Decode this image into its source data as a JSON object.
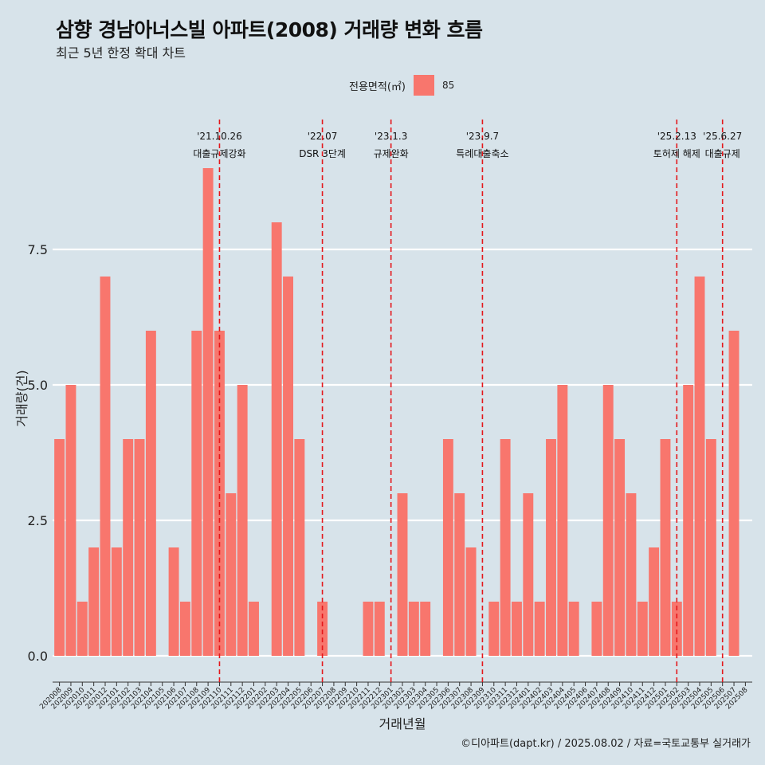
{
  "title": "삼향 경남아너스빌 아파트(2008) 거래량 변화 흐름",
  "subtitle": "최근 5년 한정 확대 차트",
  "legend": {
    "title": "전용면적(㎡)",
    "item": "85",
    "color": "#f8766d"
  },
  "caption": "©디아파트(dapt.kr) / 2025.08.02 / 자료=국토교통부 실거래가",
  "chart_data": {
    "type": "bar",
    "xlabel": "거래년월",
    "ylabel": "거래량(건)",
    "ylim": [
      -0.5,
      9.9
    ],
    "yticks": [
      "0.0",
      "2.5",
      "5.0",
      "7.5"
    ],
    "grid": true,
    "legend_position": "top",
    "categories": [
      "202008",
      "202009",
      "202010",
      "202011",
      "202012",
      "202101",
      "202102",
      "202103",
      "202104",
      "202105",
      "202106",
      "202107",
      "202108",
      "202109",
      "202110",
      "202111",
      "202112",
      "202201",
      "202202",
      "202203",
      "202204",
      "202205",
      "202206",
      "202207",
      "202208",
      "202209",
      "202210",
      "202211",
      "202212",
      "202301",
      "202302",
      "202303",
      "202304",
      "202305",
      "202306",
      "202307",
      "202308",
      "202309",
      "202310",
      "202311",
      "202312",
      "202401",
      "202402",
      "202403",
      "202404",
      "202405",
      "202406",
      "202407",
      "202408",
      "202409",
      "202410",
      "202411",
      "202412",
      "202501",
      "202502",
      "202503",
      "202504",
      "202505",
      "202506",
      "202507",
      "202508"
    ],
    "series": [
      {
        "name": "85",
        "color": "#f8766d",
        "values": [
          4,
          5,
          1,
          2,
          7,
          2,
          4,
          4,
          6,
          0,
          2,
          1,
          6,
          9,
          6,
          3,
          5,
          1,
          0,
          8,
          7,
          4,
          0,
          1,
          0,
          0,
          0,
          1,
          1,
          0,
          3,
          1,
          1,
          0,
          4,
          3,
          2,
          0,
          1,
          4,
          1,
          3,
          1,
          4,
          5,
          1,
          0,
          1,
          5,
          4,
          3,
          1,
          2,
          4,
          1,
          5,
          7,
          4,
          0,
          6,
          0
        ]
      }
    ],
    "annotations": [
      {
        "at": "202110",
        "date": "'21.10.26",
        "label": "대출규제강화"
      },
      {
        "at": "202207",
        "date": "'22.07",
        "label": "DSR 3단계"
      },
      {
        "at": "202301",
        "date": "'23.1.3",
        "label": "규제완화"
      },
      {
        "at": "202309",
        "date": "'23.9.7",
        "label": "특례대출축소"
      },
      {
        "at": "202502",
        "date": "'25.2.13",
        "label": "토허제 해제"
      },
      {
        "at": "202506",
        "date": "'25.6.27",
        "label": "대출규제"
      }
    ]
  }
}
